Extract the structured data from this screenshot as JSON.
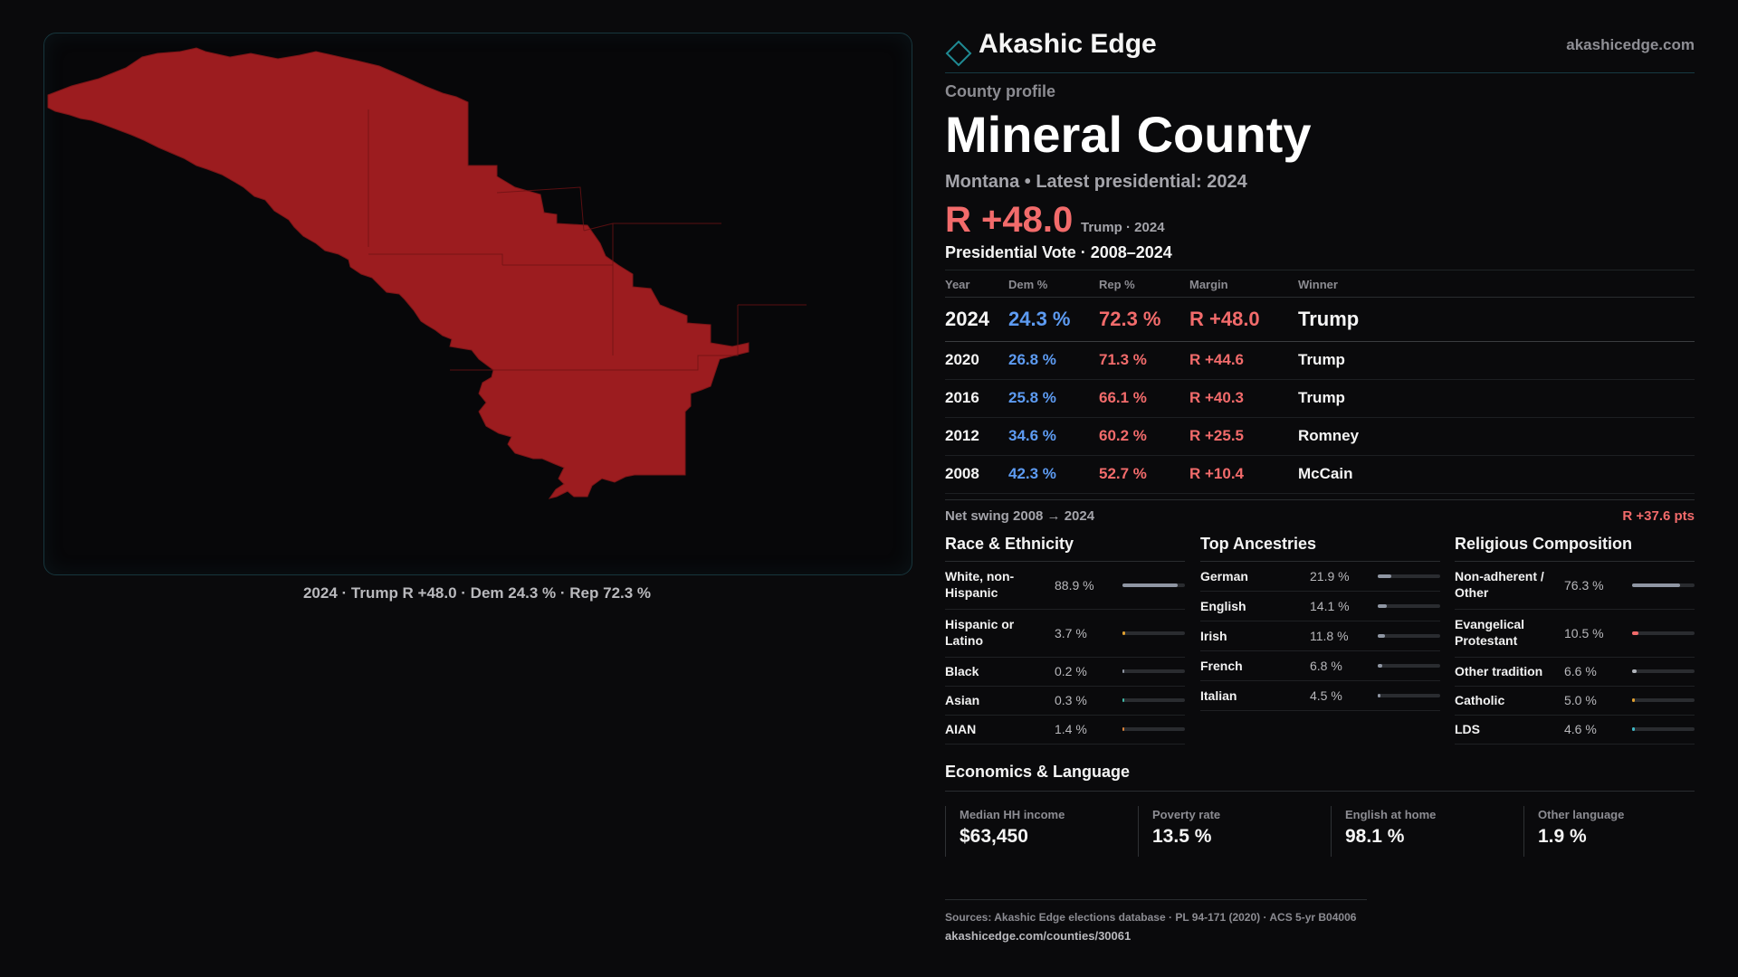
{
  "brand": {
    "name": "Akashic Edge",
    "url": "akashicedge.com"
  },
  "header": {
    "eyebrow": "County profile",
    "title": "Mineral County",
    "subtitle": "Montana • Latest presidential: 2024",
    "margin": "R +48.0",
    "margin_note": "Trump · 2024"
  },
  "map": {
    "caption": "2024 · Trump R +48.0 · Dem 24.3 % · Rep 72.3 %",
    "fill_color": "#9c1c1f"
  },
  "vote": {
    "title": "Presidential Vote · 2008–2024",
    "headers": [
      "Year",
      "Dem %",
      "Rep %",
      "Margin",
      "Winner"
    ],
    "rows": [
      {
        "year": "2024",
        "dem": "24.3 %",
        "rep": "72.3 %",
        "margin": "R +48.0",
        "winner": "Trump"
      },
      {
        "year": "2020",
        "dem": "26.8 %",
        "rep": "71.3 %",
        "margin": "R +44.6",
        "winner": "Trump"
      },
      {
        "year": "2016",
        "dem": "25.8 %",
        "rep": "66.1 %",
        "margin": "R +40.3",
        "winner": "Trump"
      },
      {
        "year": "2012",
        "dem": "34.6 %",
        "rep": "60.2 %",
        "margin": "R +25.5",
        "winner": "Romney"
      },
      {
        "year": "2008",
        "dem": "42.3 %",
        "rep": "52.7 %",
        "margin": "R +10.4",
        "winner": "McCain"
      }
    ],
    "swing_label": "Net swing 2008 → 2024",
    "swing_value": "R +37.6 pts"
  },
  "race": {
    "title": "Race & Ethnicity",
    "items": [
      {
        "label": "White, non-Hispanic",
        "value": "88.9 %",
        "fraction": 0.889,
        "color": "#8f96a3"
      },
      {
        "label": "Hispanic or Latino",
        "value": "3.7 %",
        "fraction": 0.037,
        "color": "#e0a030"
      },
      {
        "label": "Black",
        "value": "0.2 %",
        "fraction": 0.002,
        "color": "#8f96a3"
      },
      {
        "label": "Asian",
        "value": "0.3 %",
        "fraction": 0.003,
        "color": "#3fb7a5"
      },
      {
        "label": "AIAN",
        "value": "1.4 %",
        "fraction": 0.014,
        "color": "#d9823a"
      }
    ]
  },
  "ancestry": {
    "title": "Top Ancestries",
    "items": [
      {
        "label": "German",
        "value": "21.9 %",
        "fraction": 0.219,
        "color": "#8f96a3"
      },
      {
        "label": "English",
        "value": "14.1 %",
        "fraction": 0.141,
        "color": "#8f96a3"
      },
      {
        "label": "Irish",
        "value": "11.8 %",
        "fraction": 0.118,
        "color": "#8f96a3"
      },
      {
        "label": "French",
        "value": "6.8 %",
        "fraction": 0.068,
        "color": "#8f96a3"
      },
      {
        "label": "Italian",
        "value": "4.5 %",
        "fraction": 0.045,
        "color": "#8f96a3"
      }
    ]
  },
  "religion": {
    "title": "Religious Composition",
    "items": [
      {
        "label": "Non-adherent / Other",
        "value": "76.3 %",
        "fraction": 0.763,
        "color": "#8f96a3"
      },
      {
        "label": "Evangelical Protestant",
        "value": "10.5 %",
        "fraction": 0.105,
        "color": "#f26b6b"
      },
      {
        "label": "Other tradition",
        "value": "6.6 %",
        "fraction": 0.066,
        "color": "#b0b4bb"
      },
      {
        "label": "Catholic",
        "value": "5.0 %",
        "fraction": 0.05,
        "color": "#e0a030"
      },
      {
        "label": "LDS",
        "value": "4.6 %",
        "fraction": 0.046,
        "color": "#3fb7c5"
      }
    ]
  },
  "economics": {
    "title": "Economics & Language",
    "items": [
      {
        "label": "Median HH income",
        "value": "$63,450"
      },
      {
        "label": "Poverty rate",
        "value": "13.5 %"
      },
      {
        "label": "English at home",
        "value": "98.1 %"
      },
      {
        "label": "Other language",
        "value": "1.9 %"
      }
    ]
  },
  "sources": {
    "line": "Sources: Akashic Edge elections database · PL 94-171 (2020) · ACS 5-yr B04006",
    "url": "akashicedge.com/counties/30061"
  },
  "colors": {
    "dem": "#5d9bf2",
    "rep": "#f26b6b",
    "accent": "#1f7f86"
  }
}
